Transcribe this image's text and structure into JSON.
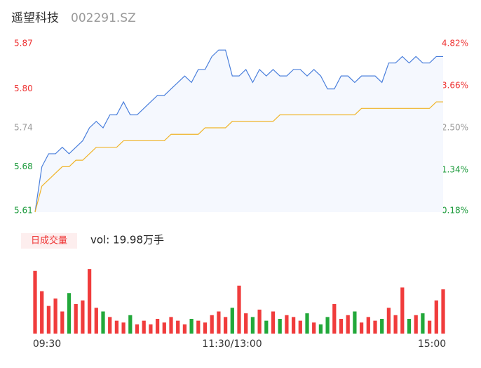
{
  "chart_data": {
    "type": "intraday",
    "title": "遥望科技",
    "code": "002291.SZ",
    "volume_tag": "日成交量",
    "volume_label": "vol: 19.98万手",
    "ylim": [
      5.61,
      5.87
    ],
    "yticks": [
      5.61,
      5.68,
      5.74,
      {
        "value": 5.8,
        "label": "5.80"
      },
      5.87
    ],
    "y2lim": [
      0.18,
      4.82
    ],
    "y2ticks": [
      {
        "value": 0.18,
        "label": "0.18%"
      },
      {
        "value": 1.34,
        "label": "1.34%"
      },
      {
        "value": 2.5,
        "label": "2.50%"
      },
      {
        "value": 3.66,
        "label": "3.66%"
      },
      {
        "value": 4.82,
        "label": "4.82%"
      }
    ],
    "xticks": [
      "09:30",
      "11:30/13:00",
      "15:00"
    ],
    "series": [
      {
        "name": "price",
        "color": "#4a7fdc",
        "values": [
          5.61,
          5.68,
          5.7,
          5.7,
          5.71,
          5.7,
          5.71,
          5.72,
          5.74,
          5.75,
          5.74,
          5.76,
          5.76,
          5.78,
          5.76,
          5.76,
          5.77,
          5.78,
          5.79,
          5.79,
          5.8,
          5.81,
          5.82,
          5.81,
          5.83,
          5.83,
          5.85,
          5.86,
          5.86,
          5.82,
          5.82,
          5.83,
          5.81,
          5.83,
          5.82,
          5.83,
          5.82,
          5.82,
          5.83,
          5.83,
          5.82,
          5.83,
          5.82,
          5.8,
          5.8,
          5.82,
          5.82,
          5.81,
          5.82,
          5.82,
          5.82,
          5.81,
          5.84,
          5.84,
          5.85,
          5.84,
          5.85,
          5.84,
          5.84,
          5.85,
          5.85
        ]
      },
      {
        "name": "average",
        "color": "#f0b428",
        "values": [
          5.61,
          5.65,
          5.66,
          5.67,
          5.68,
          5.68,
          5.69,
          5.69,
          5.7,
          5.71,
          5.71,
          5.71,
          5.71,
          5.72,
          5.72,
          5.72,
          5.72,
          5.72,
          5.72,
          5.72,
          5.73,
          5.73,
          5.73,
          5.73,
          5.73,
          5.74,
          5.74,
          5.74,
          5.74,
          5.75,
          5.75,
          5.75,
          5.75,
          5.75,
          5.75,
          5.75,
          5.76,
          5.76,
          5.76,
          5.76,
          5.76,
          5.76,
          5.76,
          5.76,
          5.76,
          5.76,
          5.76,
          5.76,
          5.77,
          5.77,
          5.77,
          5.77,
          5.77,
          5.77,
          5.77,
          5.77,
          5.77,
          5.77,
          5.77,
          5.78,
          5.78
        ]
      },
      {
        "name": "volume",
        "values": [
          3400,
          2300,
          1500,
          1900,
          1200,
          2200,
          1600,
          1800,
          3500,
          1400,
          1200,
          900,
          700,
          600,
          1000,
          500,
          700,
          500,
          800,
          600,
          900,
          700,
          500,
          800,
          700,
          600,
          1000,
          1200,
          900,
          1400,
          2600,
          1100,
          900,
          1300,
          700,
          1200,
          800,
          1000,
          900,
          700,
          1100,
          600,
          500,
          900,
          1600,
          800,
          1000,
          1200,
          600,
          900,
          700,
          800,
          1400,
          1000,
          2500,
          800,
          1000,
          1100,
          700,
          1800,
          2400
        ]
      }
    ],
    "vol_ylim": [
      0,
      4000
    ]
  }
}
